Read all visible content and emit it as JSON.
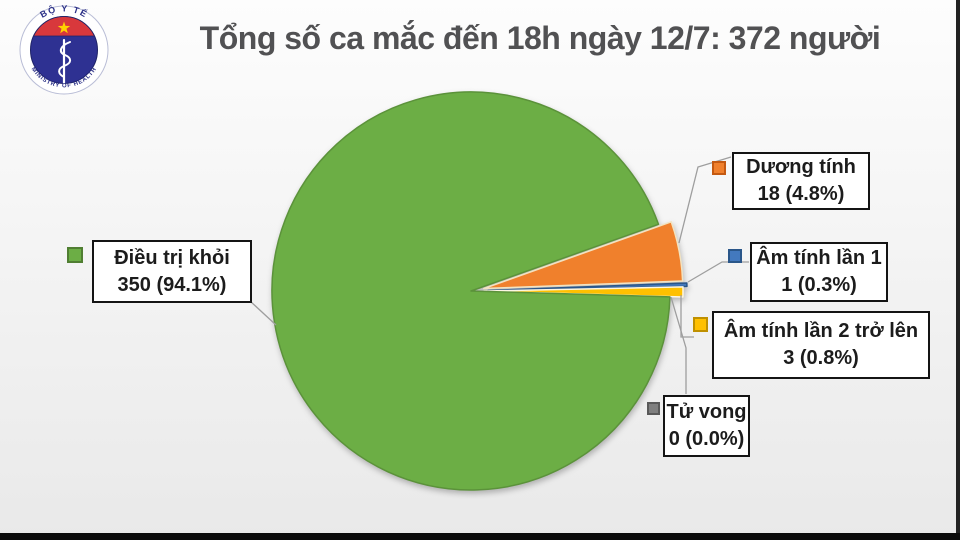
{
  "header": {
    "title": "Tổng số ca mắc đến 18h ngày 12/7: 372 người",
    "logo": {
      "top_text": "BỘ Y TẾ",
      "bottom_text": "MINISTRY OF HEALTH"
    }
  },
  "chart_data": {
    "type": "pie",
    "title": "Tổng số ca mắc đến 18h ngày 12/7: 372 người",
    "total": 372,
    "start_angle_deg": -19.59,
    "direction": "clockwise",
    "legend_position": "callout-labels",
    "slices": [
      {
        "key": "positive",
        "label": "Dương tính",
        "value": 18,
        "pct": "4.8%",
        "color": "#F0802C",
        "stroke": "#F2E3C1",
        "swatch_border": "#C45911",
        "explode": 13
      },
      {
        "key": "negative1",
        "label": "Âm tính lần 1",
        "value": 1,
        "pct": "0.3%",
        "color": "#4379BE",
        "stroke": "#2A5689",
        "swatch_border": "#2A5689",
        "explode": 17
      },
      {
        "key": "negative2",
        "label": "Âm tính lần 2 trở lên",
        "value": 3,
        "pct": "0.8%",
        "color": "#FFC000",
        "stroke": "#FDF7E3",
        "swatch_border": "#BF9000",
        "explode": 13
      },
      {
        "key": "deaths",
        "label": "Tử vong",
        "value": 0,
        "pct": "0.0%",
        "color": "#7F7F7F",
        "stroke": "#7F7F7F",
        "swatch_border": "#595959",
        "explode": 0
      },
      {
        "key": "recovered",
        "label": "Điều trị khỏi",
        "value": 350,
        "pct": "94.1%",
        "color": "#6CAE45",
        "stroke": "#5B923A",
        "swatch_border": "#507E32",
        "explode": 0
      }
    ]
  },
  "labels": {
    "recovered": {
      "line1": "Điều trị khỏi",
      "line2": "350 (94.1%)"
    },
    "positive": {
      "line1": "Dương tính",
      "line2": "18 (4.8%)"
    },
    "negative1": {
      "line1": "Âm tính lần 1",
      "line2": "1 (0.3%)"
    },
    "negative2": {
      "line1": "Âm tính lần 2 trở lên",
      "line2": "3 (0.8%)"
    },
    "deaths": {
      "line1": "Tử vong",
      "line2": "0 (0.0%)"
    }
  }
}
